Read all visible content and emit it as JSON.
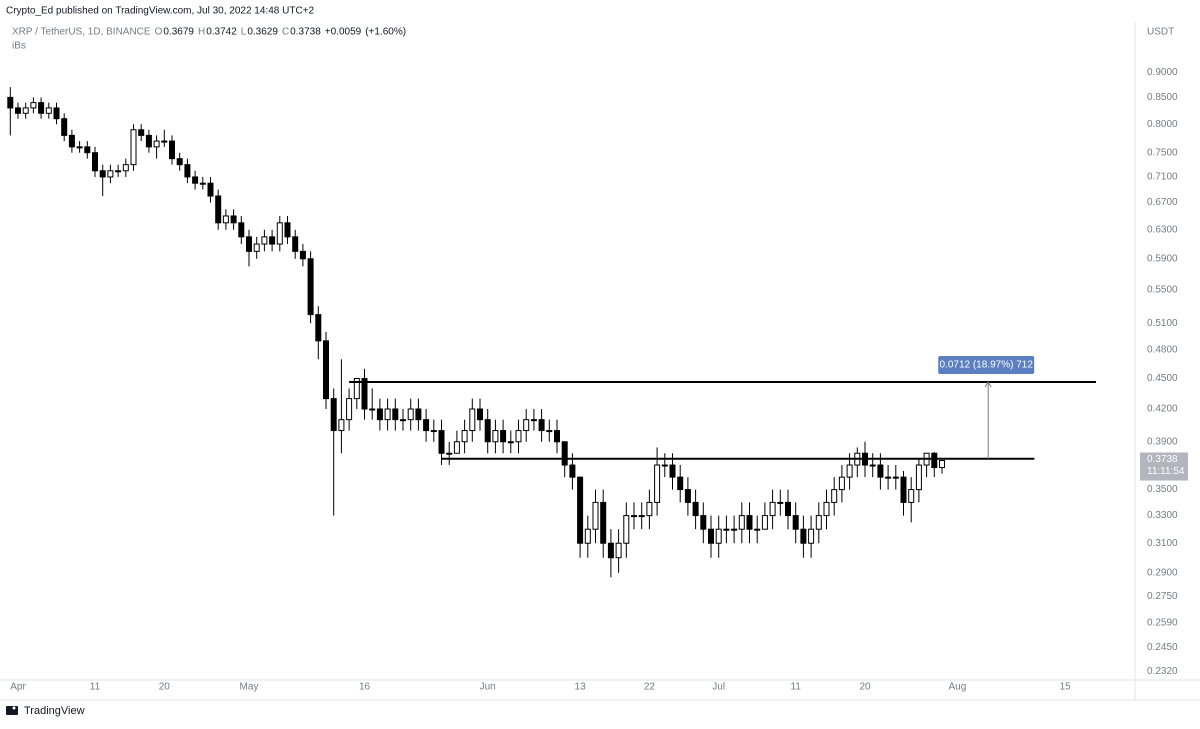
{
  "header": {
    "publisher": "Crypto_Ed published on TradingView.com, Jul 30, 2022 14:48 UTC+2",
    "symbol": "XRP / TetherUS, 1D, BINANCE",
    "ohlc_legend": [
      {
        "key": "O",
        "value": 0.3679
      },
      {
        "key": "H",
        "value": 0.3742
      },
      {
        "key": "L",
        "value": 0.3629
      },
      {
        "key": "C",
        "value": 0.3738
      }
    ],
    "change": {
      "value": 0.0059,
      "label": "+0.0059"
    },
    "change_pct": {
      "value": 1.6,
      "label": "(+1.60%)"
    },
    "indicator": "iBs",
    "currency": "USDT",
    "brand": "TradingView"
  },
  "chart_data": {
    "type": "candlestick",
    "log_scale": true,
    "grid": false,
    "xlim": [
      "2022-03-30",
      "2022-08-23"
    ],
    "xticks": [
      {
        "value": "2022-04-01",
        "label": "Apr"
      },
      {
        "value": "2022-04-11",
        "label": "11"
      },
      {
        "value": "2022-04-20",
        "label": "20"
      },
      {
        "value": "2022-05-01",
        "label": "May"
      },
      {
        "value": "2022-05-16",
        "label": "16"
      },
      {
        "value": "2022-06-01",
        "label": "Jun"
      },
      {
        "value": "2022-06-13",
        "label": "13"
      },
      {
        "value": "2022-06-22",
        "label": "22"
      },
      {
        "value": "2022-07-01",
        "label": "Jul"
      },
      {
        "value": "2022-07-11",
        "label": "11"
      },
      {
        "value": "2022-07-20",
        "label": "20"
      },
      {
        "value": "2022-08-01",
        "label": "Aug"
      },
      {
        "value": "2022-08-15",
        "label": "15"
      }
    ],
    "ylim": [
      0.2275,
      0.99
    ],
    "yticks": [
      {
        "value": 0.9,
        "label": "0.9000"
      },
      {
        "value": 0.85,
        "label": "0.8500"
      },
      {
        "value": 0.8,
        "label": "0.8000"
      },
      {
        "value": 0.75,
        "label": "0.7500"
      },
      {
        "value": 0.71,
        "label": "0.7100"
      },
      {
        "value": 0.67,
        "label": "0.6700"
      },
      {
        "value": 0.63,
        "label": "0.6300"
      },
      {
        "value": 0.59,
        "label": "0.5900"
      },
      {
        "value": 0.55,
        "label": "0.5500"
      },
      {
        "value": 0.51,
        "label": "0.5100"
      },
      {
        "value": 0.48,
        "label": "0.4800"
      },
      {
        "value": 0.45,
        "label": "0.4500"
      },
      {
        "value": 0.42,
        "label": "0.4200"
      },
      {
        "value": 0.39,
        "label": "0.3900"
      },
      {
        "value": 0.35,
        "label": "0.3500"
      },
      {
        "value": 0.33,
        "label": "0.3300"
      },
      {
        "value": 0.31,
        "label": "0.3100"
      },
      {
        "value": 0.29,
        "label": "0.2900"
      },
      {
        "value": 0.275,
        "label": "0.2750"
      },
      {
        "value": 0.259,
        "label": "0.2590"
      },
      {
        "value": 0.245,
        "label": "0.2450"
      },
      {
        "value": 0.232,
        "label": "0.2320"
      }
    ],
    "up_color": "#ffffff",
    "down_color": "#000000",
    "outline_color": "#000000",
    "x": [
      "2022-03-31",
      "2022-04-01",
      "2022-04-02",
      "2022-04-03",
      "2022-04-04",
      "2022-04-05",
      "2022-04-06",
      "2022-04-07",
      "2022-04-08",
      "2022-04-09",
      "2022-04-10",
      "2022-04-11",
      "2022-04-12",
      "2022-04-13",
      "2022-04-14",
      "2022-04-15",
      "2022-04-16",
      "2022-04-17",
      "2022-04-18",
      "2022-04-19",
      "2022-04-20",
      "2022-04-21",
      "2022-04-22",
      "2022-04-23",
      "2022-04-24",
      "2022-04-25",
      "2022-04-26",
      "2022-04-27",
      "2022-04-28",
      "2022-04-29",
      "2022-04-30",
      "2022-05-01",
      "2022-05-02",
      "2022-05-03",
      "2022-05-04",
      "2022-05-05",
      "2022-05-06",
      "2022-05-07",
      "2022-05-08",
      "2022-05-09",
      "2022-05-10",
      "2022-05-11",
      "2022-05-12",
      "2022-05-13",
      "2022-05-14",
      "2022-05-15",
      "2022-05-16",
      "2022-05-17",
      "2022-05-18",
      "2022-05-19",
      "2022-05-20",
      "2022-05-21",
      "2022-05-22",
      "2022-05-23",
      "2022-05-24",
      "2022-05-25",
      "2022-05-26",
      "2022-05-27",
      "2022-05-28",
      "2022-05-29",
      "2022-05-30",
      "2022-05-31",
      "2022-06-01",
      "2022-06-02",
      "2022-06-03",
      "2022-06-04",
      "2022-06-05",
      "2022-06-06",
      "2022-06-07",
      "2022-06-08",
      "2022-06-09",
      "2022-06-10",
      "2022-06-11",
      "2022-06-12",
      "2022-06-13",
      "2022-06-14",
      "2022-06-15",
      "2022-06-16",
      "2022-06-17",
      "2022-06-18",
      "2022-06-19",
      "2022-06-20",
      "2022-06-21",
      "2022-06-22",
      "2022-06-23",
      "2022-06-24",
      "2022-06-25",
      "2022-06-26",
      "2022-06-27",
      "2022-06-28",
      "2022-06-29",
      "2022-06-30",
      "2022-07-01",
      "2022-07-02",
      "2022-07-03",
      "2022-07-04",
      "2022-07-05",
      "2022-07-06",
      "2022-07-07",
      "2022-07-08",
      "2022-07-09",
      "2022-07-10",
      "2022-07-11",
      "2022-07-12",
      "2022-07-13",
      "2022-07-14",
      "2022-07-15",
      "2022-07-16",
      "2022-07-17",
      "2022-07-18",
      "2022-07-19",
      "2022-07-20",
      "2022-07-21",
      "2022-07-22",
      "2022-07-23",
      "2022-07-24",
      "2022-07-25",
      "2022-07-26",
      "2022-07-27",
      "2022-07-28",
      "2022-07-29",
      "2022-07-30"
    ],
    "series": [
      {
        "name": "XRPUSDT",
        "values": [
          [
            0.85,
            0.87,
            0.78,
            0.83
          ],
          [
            0.83,
            0.84,
            0.81,
            0.82
          ],
          [
            0.82,
            0.84,
            0.81,
            0.83
          ],
          [
            0.83,
            0.85,
            0.82,
            0.84
          ],
          [
            0.84,
            0.85,
            0.81,
            0.82
          ],
          [
            0.82,
            0.84,
            0.81,
            0.83
          ],
          [
            0.83,
            0.84,
            0.8,
            0.81
          ],
          [
            0.81,
            0.82,
            0.77,
            0.78
          ],
          [
            0.78,
            0.79,
            0.75,
            0.76
          ],
          [
            0.76,
            0.77,
            0.75,
            0.76
          ],
          [
            0.76,
            0.77,
            0.74,
            0.75
          ],
          [
            0.75,
            0.76,
            0.71,
            0.72
          ],
          [
            0.72,
            0.73,
            0.68,
            0.71
          ],
          [
            0.71,
            0.73,
            0.7,
            0.72
          ],
          [
            0.72,
            0.73,
            0.71,
            0.72
          ],
          [
            0.72,
            0.74,
            0.71,
            0.73
          ],
          [
            0.73,
            0.8,
            0.72,
            0.79
          ],
          [
            0.79,
            0.8,
            0.77,
            0.78
          ],
          [
            0.78,
            0.79,
            0.75,
            0.76
          ],
          [
            0.76,
            0.78,
            0.74,
            0.77
          ],
          [
            0.77,
            0.79,
            0.76,
            0.77
          ],
          [
            0.77,
            0.78,
            0.73,
            0.74
          ],
          [
            0.74,
            0.75,
            0.72,
            0.73
          ],
          [
            0.73,
            0.74,
            0.7,
            0.71
          ],
          [
            0.71,
            0.72,
            0.69,
            0.7
          ],
          [
            0.7,
            0.71,
            0.69,
            0.7
          ],
          [
            0.7,
            0.71,
            0.67,
            0.68
          ],
          [
            0.68,
            0.69,
            0.63,
            0.64
          ],
          [
            0.64,
            0.66,
            0.63,
            0.65
          ],
          [
            0.65,
            0.66,
            0.63,
            0.64
          ],
          [
            0.64,
            0.65,
            0.61,
            0.62
          ],
          [
            0.62,
            0.63,
            0.58,
            0.6
          ],
          [
            0.6,
            0.62,
            0.59,
            0.61
          ],
          [
            0.61,
            0.63,
            0.6,
            0.62
          ],
          [
            0.62,
            0.63,
            0.6,
            0.61
          ],
          [
            0.61,
            0.65,
            0.6,
            0.64
          ],
          [
            0.64,
            0.65,
            0.61,
            0.62
          ],
          [
            0.62,
            0.63,
            0.59,
            0.6
          ],
          [
            0.6,
            0.61,
            0.58,
            0.59
          ],
          [
            0.59,
            0.6,
            0.51,
            0.52
          ],
          [
            0.52,
            0.53,
            0.47,
            0.49
          ],
          [
            0.49,
            0.5,
            0.42,
            0.43
          ],
          [
            0.43,
            0.44,
            0.33,
            0.4
          ],
          [
            0.4,
            0.47,
            0.38,
            0.41
          ],
          [
            0.41,
            0.44,
            0.4,
            0.43
          ],
          [
            0.43,
            0.45,
            0.42,
            0.45
          ],
          [
            0.45,
            0.46,
            0.41,
            0.42
          ],
          [
            0.42,
            0.44,
            0.41,
            0.42
          ],
          [
            0.42,
            0.43,
            0.4,
            0.41
          ],
          [
            0.41,
            0.43,
            0.4,
            0.42
          ],
          [
            0.42,
            0.43,
            0.4,
            0.41
          ],
          [
            0.41,
            0.42,
            0.4,
            0.41
          ],
          [
            0.41,
            0.43,
            0.4,
            0.42
          ],
          [
            0.42,
            0.43,
            0.4,
            0.41
          ],
          [
            0.41,
            0.42,
            0.39,
            0.4
          ],
          [
            0.4,
            0.41,
            0.39,
            0.4
          ],
          [
            0.4,
            0.41,
            0.37,
            0.38
          ],
          [
            0.38,
            0.39,
            0.37,
            0.38
          ],
          [
            0.38,
            0.4,
            0.38,
            0.39
          ],
          [
            0.39,
            0.41,
            0.38,
            0.4
          ],
          [
            0.4,
            0.43,
            0.39,
            0.42
          ],
          [
            0.42,
            0.43,
            0.4,
            0.41
          ],
          [
            0.41,
            0.42,
            0.38,
            0.39
          ],
          [
            0.39,
            0.41,
            0.38,
            0.4
          ],
          [
            0.4,
            0.41,
            0.38,
            0.39
          ],
          [
            0.39,
            0.4,
            0.38,
            0.39
          ],
          [
            0.39,
            0.41,
            0.38,
            0.4
          ],
          [
            0.4,
            0.42,
            0.39,
            0.41
          ],
          [
            0.41,
            0.42,
            0.4,
            0.41
          ],
          [
            0.41,
            0.42,
            0.39,
            0.4
          ],
          [
            0.4,
            0.41,
            0.39,
            0.4
          ],
          [
            0.4,
            0.41,
            0.38,
            0.39
          ],
          [
            0.39,
            0.39,
            0.36,
            0.37
          ],
          [
            0.37,
            0.38,
            0.35,
            0.36
          ],
          [
            0.36,
            0.36,
            0.3,
            0.31
          ],
          [
            0.31,
            0.33,
            0.3,
            0.32
          ],
          [
            0.32,
            0.35,
            0.31,
            0.34
          ],
          [
            0.34,
            0.35,
            0.3,
            0.31
          ],
          [
            0.31,
            0.32,
            0.287,
            0.3
          ],
          [
            0.3,
            0.32,
            0.29,
            0.31
          ],
          [
            0.31,
            0.34,
            0.3,
            0.33
          ],
          [
            0.33,
            0.34,
            0.32,
            0.33
          ],
          [
            0.33,
            0.34,
            0.32,
            0.33
          ],
          [
            0.33,
            0.35,
            0.32,
            0.34
          ],
          [
            0.34,
            0.385,
            0.33,
            0.37
          ],
          [
            0.37,
            0.38,
            0.36,
            0.37
          ],
          [
            0.37,
            0.38,
            0.35,
            0.36
          ],
          [
            0.36,
            0.37,
            0.34,
            0.35
          ],
          [
            0.35,
            0.36,
            0.33,
            0.34
          ],
          [
            0.34,
            0.35,
            0.32,
            0.33
          ],
          [
            0.33,
            0.34,
            0.31,
            0.32
          ],
          [
            0.32,
            0.33,
            0.3,
            0.31
          ],
          [
            0.31,
            0.33,
            0.3,
            0.32
          ],
          [
            0.32,
            0.33,
            0.31,
            0.32
          ],
          [
            0.32,
            0.33,
            0.31,
            0.32
          ],
          [
            0.32,
            0.34,
            0.31,
            0.33
          ],
          [
            0.33,
            0.34,
            0.31,
            0.32
          ],
          [
            0.32,
            0.33,
            0.31,
            0.32
          ],
          [
            0.32,
            0.34,
            0.32,
            0.33
          ],
          [
            0.33,
            0.35,
            0.32,
            0.34
          ],
          [
            0.34,
            0.35,
            0.33,
            0.34
          ],
          [
            0.34,
            0.35,
            0.32,
            0.33
          ],
          [
            0.33,
            0.34,
            0.31,
            0.32
          ],
          [
            0.32,
            0.33,
            0.3,
            0.31
          ],
          [
            0.31,
            0.33,
            0.3,
            0.32
          ],
          [
            0.32,
            0.34,
            0.31,
            0.33
          ],
          [
            0.33,
            0.35,
            0.32,
            0.34
          ],
          [
            0.34,
            0.36,
            0.33,
            0.35
          ],
          [
            0.35,
            0.37,
            0.34,
            0.36
          ],
          [
            0.36,
            0.38,
            0.35,
            0.37
          ],
          [
            0.37,
            0.385,
            0.36,
            0.38
          ],
          [
            0.38,
            0.39,
            0.36,
            0.37
          ],
          [
            0.37,
            0.38,
            0.36,
            0.37
          ],
          [
            0.37,
            0.38,
            0.35,
            0.36
          ],
          [
            0.36,
            0.37,
            0.35,
            0.36
          ],
          [
            0.36,
            0.37,
            0.35,
            0.36
          ],
          [
            0.36,
            0.365,
            0.33,
            0.34
          ],
          [
            0.34,
            0.36,
            0.325,
            0.35
          ],
          [
            0.35,
            0.375,
            0.34,
            0.37
          ],
          [
            0.37,
            0.38,
            0.36,
            0.38
          ],
          [
            0.38,
            0.381,
            0.36,
            0.3679
          ],
          [
            0.3679,
            0.3742,
            0.3629,
            0.3738
          ]
        ]
      }
    ],
    "levels": [
      {
        "value": 0.4465,
        "start": "2022-05-14",
        "end": "2022-08-19"
      },
      {
        "value": 0.3753,
        "start": "2022-05-26",
        "end": "2022-08-11"
      }
    ],
    "measure": {
      "date": "2022-08-05",
      "from": 0.3753,
      "to": 0.4465,
      "value": 0.0712,
      "label": "0.0712 (18.97%) 712"
    },
    "last_price": {
      "value": 0.3738,
      "label": "0.3738"
    },
    "countdown": "11:11:54"
  }
}
